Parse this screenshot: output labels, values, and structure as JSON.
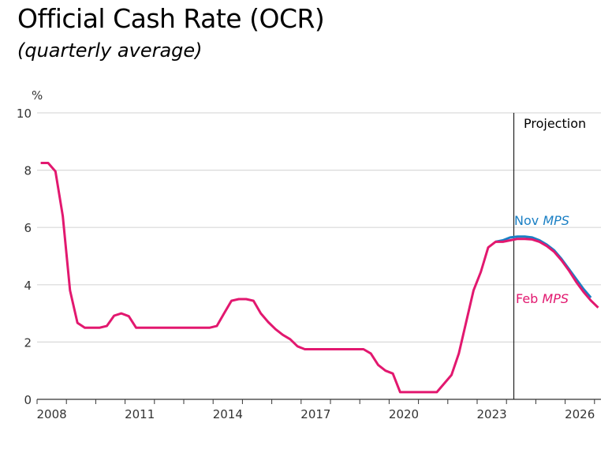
{
  "chart_data": {
    "type": "line",
    "title": "Official Cash Rate (OCR)",
    "subtitle": "(quarterly average)",
    "ylabel": "%",
    "xlabel": "",
    "ylim": [
      0,
      10
    ],
    "xlim": [
      2008,
      2027.25
    ],
    "yticks": [
      0,
      2,
      4,
      6,
      8,
      10
    ],
    "xtick_labels": [
      "2008",
      "2011",
      "2014",
      "2017",
      "2020",
      "2023",
      "2026"
    ],
    "grid": "horizontal",
    "projection_start": 2024.25,
    "projection_label": "Projection",
    "x_start_quarter": "2008Q1",
    "series": [
      {
        "name": "Feb MPS",
        "label_main": "Feb ",
        "label_italic": "MPS",
        "color": "#e2186f",
        "start_index": 0,
        "values": [
          8.25,
          8.25,
          7.96,
          6.4,
          3.8,
          2.67,
          2.5,
          2.5,
          2.5,
          2.56,
          2.92,
          3.0,
          2.9,
          2.5,
          2.5,
          2.5,
          2.5,
          2.5,
          2.5,
          2.5,
          2.5,
          2.5,
          2.5,
          2.5,
          2.56,
          3.0,
          3.44,
          3.5,
          3.5,
          3.44,
          3.0,
          2.7,
          2.45,
          2.25,
          2.1,
          1.85,
          1.75,
          1.75,
          1.75,
          1.75,
          1.75,
          1.75,
          1.75,
          1.75,
          1.75,
          1.6,
          1.2,
          1.0,
          0.9,
          0.25,
          0.25,
          0.25,
          0.25,
          0.25,
          0.25,
          0.55,
          0.85,
          1.6,
          2.7,
          3.8,
          4.45,
          5.3,
          5.5,
          5.5,
          5.55,
          5.6,
          5.6,
          5.58,
          5.5,
          5.35,
          5.15,
          4.85,
          4.5,
          4.1,
          3.75,
          3.45,
          3.2
        ]
      },
      {
        "name": "Nov MPS",
        "label_main": "Nov ",
        "label_italic": "MPS",
        "color": "#1a7fc4",
        "start_index": 62,
        "values": [
          5.5,
          5.55,
          5.65,
          5.68,
          5.68,
          5.65,
          5.55,
          5.4,
          5.2,
          4.9,
          4.55,
          4.2,
          3.85,
          3.55
        ]
      }
    ]
  }
}
